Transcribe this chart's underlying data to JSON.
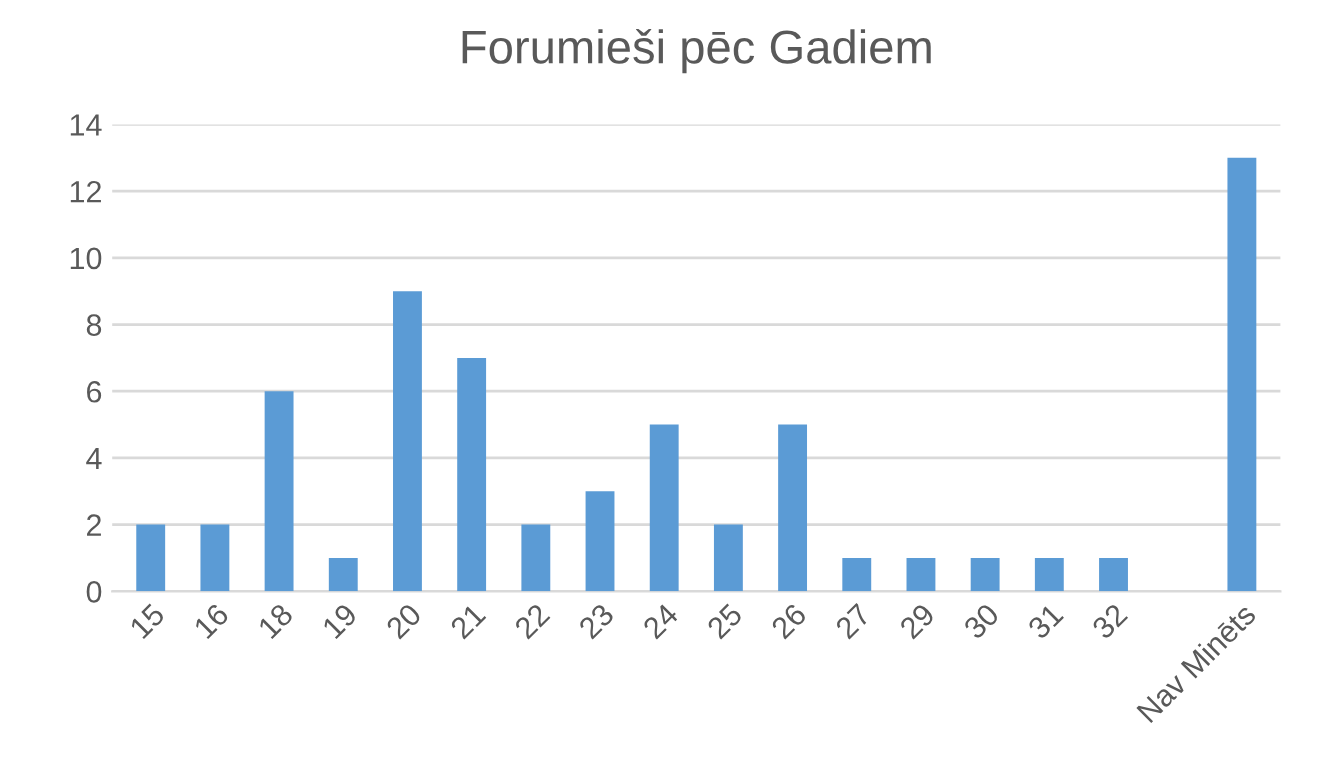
{
  "chart_data": {
    "type": "bar",
    "title": "Forumieši pēc Gadiem",
    "categories": [
      "15",
      "16",
      "18",
      "19",
      "20",
      "21",
      "22",
      "23",
      "24",
      "25",
      "26",
      "27",
      "29",
      "30",
      "31",
      "32",
      null,
      "Nav Minēts"
    ],
    "values": [
      2,
      2,
      6,
      1,
      9,
      7,
      2,
      3,
      5,
      2,
      5,
      1,
      1,
      1,
      1,
      1,
      null,
      13
    ],
    "color": "#5b9bd5",
    "ylim": [
      0,
      14
    ],
    "yticks": [
      0,
      2,
      4,
      6,
      8,
      10,
      12,
      14
    ],
    "grid": "y"
  }
}
